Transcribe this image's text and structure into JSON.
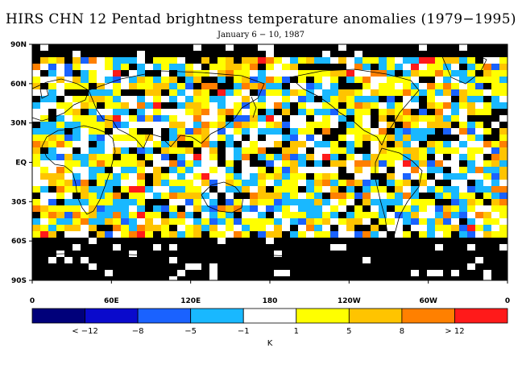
{
  "title": "HIRS CHN 12 Pentad brightness temperature anomalies (1979−1995)",
  "subtitle": "January 6 − 10, 1987",
  "y_ticks": [
    "90N",
    "60N",
    "30N",
    "EQ",
    "30S",
    "60S",
    "90S"
  ],
  "x_ticks": [
    "0",
    "60E",
    "120E",
    "180",
    "120W",
    "60W",
    "0"
  ],
  "colorbar": {
    "colors": [
      "#00007a",
      "#0a0acc",
      "#1a62ff",
      "#19b8ff",
      "#ffffff",
      "#ffff00",
      "#ffc400",
      "#ff8000",
      "#ff1a1a"
    ],
    "labels": [
      "< −12",
      "−8",
      "−5",
      "−1",
      "1",
      "5",
      "8",
      "> 12"
    ],
    "unit": "K"
  },
  "missing_color": "#000000"
}
